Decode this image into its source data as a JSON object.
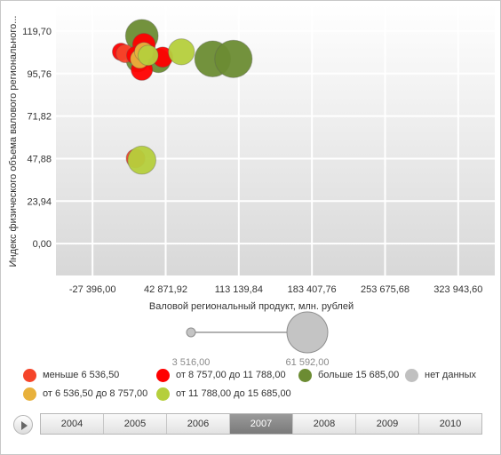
{
  "colors": {
    "red": "#ff0000",
    "orange_red": "#f5452a",
    "yellow": "#e8b13c",
    "light_green": "#b5cf3c",
    "dark_green": "#6c8c33",
    "no_data": "#c0c0c0",
    "plot_gradient_top": "#ffffff",
    "plot_gradient_bottom": "#d9d9d9",
    "active_year_bg": "#898989"
  },
  "chart_data": {
    "type": "scatter",
    "variant": "bubble",
    "title": "",
    "xlabel": "Валовой региональный продукт, млн. рублей",
    "ylabel": "Индекс физического объема валового регионального...",
    "xlim": [
      -62531.04,
      359078.64
    ],
    "ylim": [
      -17.95,
      134.665
    ],
    "x_ticks": [
      -27396.0,
      42871.92,
      113139.84,
      183407.76,
      253675.68,
      323943.6
    ],
    "x_tick_labels": [
      "-27 396,00",
      "42 871,92",
      "113 139,84",
      "183 407,76",
      "253 675,68",
      "323 943,60"
    ],
    "y_ticks": [
      0.0,
      23.94,
      47.88,
      71.82,
      95.76,
      119.7
    ],
    "y_tick_labels": [
      "0,00",
      "23,94",
      "47,88",
      "71,82",
      "95,76",
      "119,70"
    ],
    "grid": true,
    "legend_position": "bottom",
    "size_legend": {
      "min_label": "3 516,00",
      "max_label": "61 592,00",
      "min_value": 3516,
      "max_value": 61592
    },
    "legend": [
      {
        "label": "меньше 6 536,50",
        "color": "#f5452a"
      },
      {
        "label": "от 8 757,00 до 11 788,00",
        "color": "#ff0000"
      },
      {
        "label": "больше 15 685,00",
        "color": "#6c8c33"
      },
      {
        "label": "нет данных",
        "color": "#c0c0c0"
      },
      {
        "label": "от 6 536,50 до 8 757,00",
        "color": "#e8b13c"
      },
      {
        "label": "от 11 788,00 до 15 685,00",
        "color": "#b5cf3c"
      }
    ],
    "points": [
      {
        "x": 20000,
        "y": 117,
        "size": 40000,
        "color": "#6c8c33"
      },
      {
        "x": 16000,
        "y": 103,
        "size": 20000,
        "color": "#6c8c33"
      },
      {
        "x": 36000,
        "y": 103,
        "size": 22000,
        "color": "#6c8c33"
      },
      {
        "x": 88000,
        "y": 104,
        "size": 48000,
        "color": "#6c8c33"
      },
      {
        "x": 108000,
        "y": 104,
        "size": 52000,
        "color": "#6c8c33"
      },
      {
        "x": 0,
        "y": 108,
        "size": 12000,
        "color": "#ff0000"
      },
      {
        "x": 4000,
        "y": 107,
        "size": 13000,
        "color": "#f5452a"
      },
      {
        "x": 22000,
        "y": 112,
        "size": 20000,
        "color": "#ff0000"
      },
      {
        "x": 14000,
        "y": 106,
        "size": 13000,
        "color": "#ff0000"
      },
      {
        "x": 40000,
        "y": 105,
        "size": 16000,
        "color": "#ff0000"
      },
      {
        "x": 20000,
        "y": 98,
        "size": 18000,
        "color": "#ff0000"
      },
      {
        "x": 18000,
        "y": 104,
        "size": 14000,
        "color": "#e8b13c"
      },
      {
        "x": 22000,
        "y": 108,
        "size": 14000,
        "color": "#e8b13c"
      },
      {
        "x": 58000,
        "y": 108,
        "size": 26000,
        "color": "#b5cf3c"
      },
      {
        "x": 26000,
        "y": 106,
        "size": 16000,
        "color": "#b5cf3c"
      },
      {
        "x": 14000,
        "y": 48,
        "size": 14000,
        "color": "#f5452a"
      },
      {
        "x": 20000,
        "y": 47,
        "size": 30000,
        "color": "#b5cf3c"
      }
    ]
  },
  "timeline": {
    "years": [
      "2004",
      "2005",
      "2006",
      "2007",
      "2008",
      "2009",
      "2010"
    ],
    "active": "2007"
  }
}
